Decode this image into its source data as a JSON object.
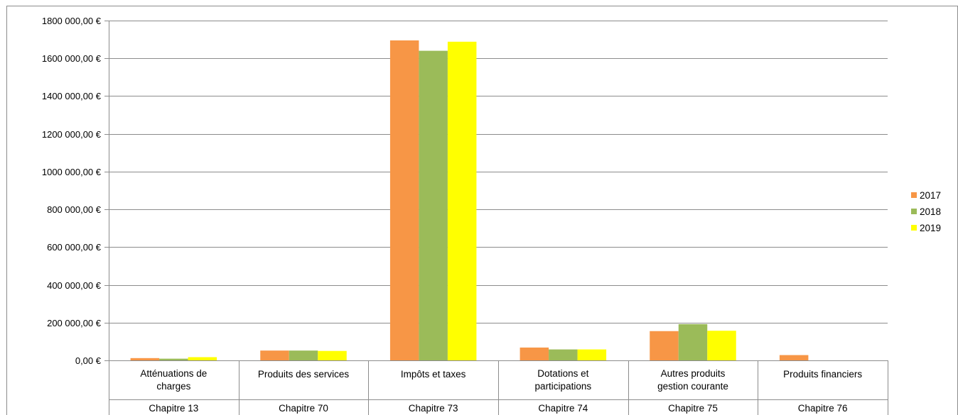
{
  "chart_data": {
    "type": "bar",
    "categories": [
      {
        "name": [
          "Atténuations de",
          "charges"
        ],
        "chapter": "Chapitre 13"
      },
      {
        "name": [
          "Produits des services"
        ],
        "chapter": "Chapitre 70"
      },
      {
        "name": [
          "Impôts et taxes"
        ],
        "chapter": "Chapitre 73"
      },
      {
        "name": [
          "Dotations et",
          "participations"
        ],
        "chapter": "Chapitre 74"
      },
      {
        "name": [
          "Autres produits",
          "gestion courante"
        ],
        "chapter": "Chapitre 75"
      },
      {
        "name": [
          "Produits financiers"
        ],
        "chapter": "Chapitre 76"
      }
    ],
    "series": [
      {
        "name": "2017",
        "color": "#f79646",
        "values": [
          12000,
          52000,
          1695000,
          68000,
          155000,
          28000
        ]
      },
      {
        "name": "2018",
        "color": "#9bbb59",
        "values": [
          9000,
          52000,
          1640000,
          58000,
          192000,
          0
        ]
      },
      {
        "name": "2019",
        "color": "#ffff00",
        "values": [
          17000,
          50000,
          1688000,
          58000,
          157000,
          0
        ]
      }
    ],
    "ylim": [
      0,
      1800000
    ],
    "yticks": [
      0,
      200000,
      400000,
      600000,
      800000,
      1000000,
      1200000,
      1400000,
      1600000,
      1800000
    ],
    "ytick_labels": [
      "0,00 €",
      "200 000,00 €",
      "400 000,00 €",
      "600 000,00 €",
      "800 000,00 €",
      "1000 000,00 €",
      "1200 000,00 €",
      "1400 000,00 €",
      "1600 000,00 €",
      "1800 000,00 €"
    ],
    "grid": true,
    "legend_position": "right",
    "title": "",
    "xlabel": "",
    "ylabel": ""
  }
}
